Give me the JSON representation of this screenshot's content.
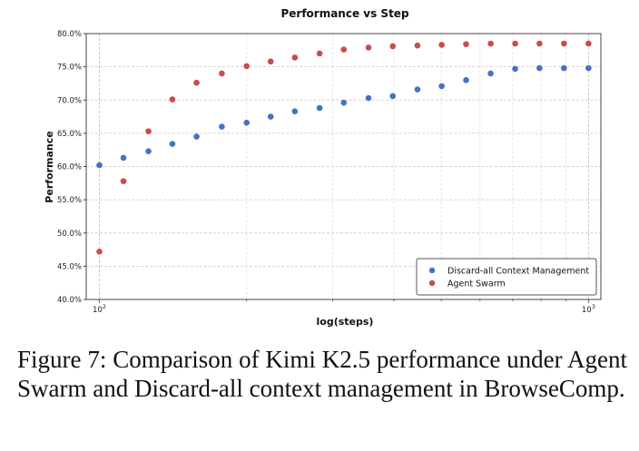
{
  "chart_data": {
    "type": "scatter",
    "title": "Performance vs Step",
    "xlabel": "log(steps)",
    "ylabel": "Performance",
    "xscale": "log",
    "xlim": [
      94,
      1060
    ],
    "ylim": [
      40,
      80
    ],
    "grid": true,
    "legend_position": "bottom-right",
    "y_ticks": [
      40,
      45,
      50,
      55,
      60,
      65,
      70,
      75,
      80
    ],
    "y_tick_labels": [
      "40.0%",
      "45.0%",
      "50.0%",
      "55.0%",
      "60.0%",
      "65.0%",
      "70.0%",
      "75.0%",
      "80.0%"
    ],
    "x_ticks": [
      100,
      1000
    ],
    "x_tick_base": "10",
    "x_tick_exponents": [
      "2",
      "3"
    ],
    "x": [
      100,
      112,
      126,
      141,
      158,
      178,
      200,
      224,
      251,
      282,
      316,
      355,
      398,
      447,
      501,
      562,
      631,
      708,
      794,
      891,
      1000
    ],
    "series": [
      {
        "name": "Discard-all Context Management",
        "color": "#4472c4",
        "values": [
          60.2,
          61.3,
          62.3,
          63.4,
          64.5,
          66.0,
          66.6,
          67.5,
          68.3,
          68.8,
          69.6,
          70.3,
          70.6,
          71.6,
          72.1,
          73.0,
          74.0,
          74.7,
          74.8,
          74.8,
          null
        ]
      },
      {
        "name": "Agent Swarm",
        "color": "#c94c4c",
        "values": [
          47.2,
          57.8,
          65.3,
          70.1,
          72.6,
          74.0,
          75.1,
          75.8,
          76.4,
          77.0,
          77.6,
          77.9,
          78.1,
          78.2,
          78.3,
          78.4,
          78.5,
          78.5,
          78.5,
          78.5,
          null
        ]
      }
    ],
    "extra_points": [
      {
        "series": 0,
        "x": 1000,
        "y": 74.8
      },
      {
        "series": 1,
        "x": 1000,
        "y": 78.5
      }
    ]
  },
  "caption": "Figure 7: Comparison of Kimi K2.5 performance under Agent Swarm and Discard-all context management in BrowseComp."
}
